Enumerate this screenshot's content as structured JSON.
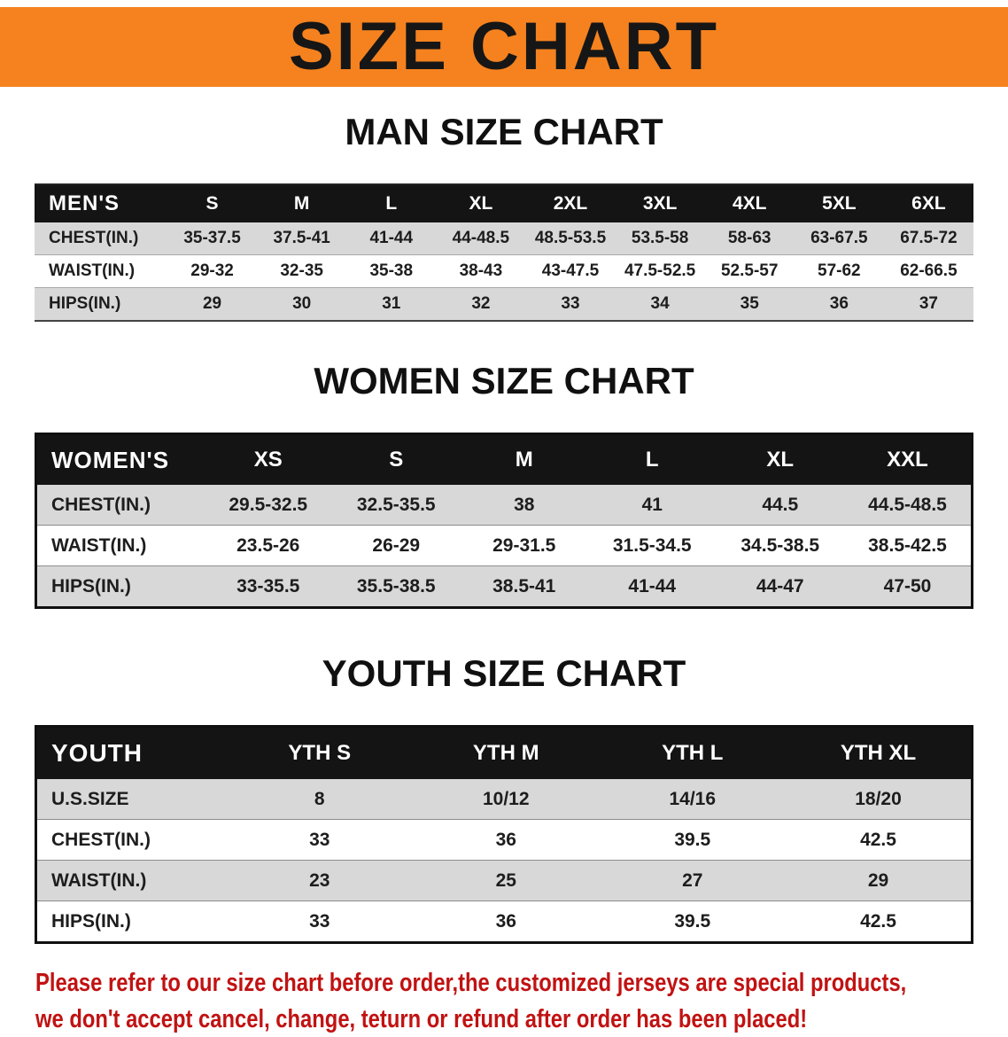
{
  "banner": {
    "title": "SIZE CHART",
    "bg_color": "#f5821f",
    "text_color": "#161616"
  },
  "men": {
    "heading": "MAN SIZE CHART",
    "label": "MEN'S",
    "columns": [
      "S",
      "M",
      "L",
      "XL",
      "2XL",
      "3XL",
      "4XL",
      "5XL",
      "6XL"
    ],
    "rows": [
      {
        "label": "CHEST(IN.)",
        "values": [
          "35-37.5",
          "37.5-41",
          "41-44",
          "44-48.5",
          "48.5-53.5",
          "53.5-58",
          "58-63",
          "63-67.5",
          "67.5-72"
        ]
      },
      {
        "label": "WAIST(IN.)",
        "values": [
          "29-32",
          "32-35",
          "35-38",
          "38-43",
          "43-47.5",
          "47.5-52.5",
          "52.5-57",
          "57-62",
          "62-66.5"
        ]
      },
      {
        "label": "HIPS(IN.)",
        "values": [
          "29",
          "30",
          "31",
          "32",
          "33",
          "34",
          "35",
          "36",
          "37"
        ]
      }
    ]
  },
  "women": {
    "heading": "WOMEN SIZE CHART",
    "label": "WOMEN'S",
    "columns": [
      "XS",
      "S",
      "M",
      "L",
      "XL",
      "XXL"
    ],
    "rows": [
      {
        "label": "CHEST(IN.)",
        "values": [
          "29.5-32.5",
          "32.5-35.5",
          "38",
          "41",
          "44.5",
          "44.5-48.5"
        ]
      },
      {
        "label": "WAIST(IN.)",
        "values": [
          "23.5-26",
          "26-29",
          "29-31.5",
          "31.5-34.5",
          "34.5-38.5",
          "38.5-42.5"
        ]
      },
      {
        "label": "HIPS(IN.)",
        "values": [
          "33-35.5",
          "35.5-38.5",
          "38.5-41",
          "41-44",
          "44-47",
          "47-50"
        ]
      }
    ]
  },
  "youth": {
    "heading": "YOUTH SIZE CHART",
    "label": "YOUTH",
    "columns": [
      "YTH S",
      "YTH M",
      "YTH L",
      "YTH XL"
    ],
    "rows": [
      {
        "label": "U.S.SIZE",
        "values": [
          "8",
          "10/12",
          "14/16",
          "18/20"
        ]
      },
      {
        "label": "CHEST(IN.)",
        "values": [
          "33",
          "36",
          "39.5",
          "42.5"
        ]
      },
      {
        "label": "WAIST(IN.)",
        "values": [
          "23",
          "25",
          "27",
          "29"
        ]
      },
      {
        "label": "HIPS(IN.)",
        "values": [
          "33",
          "36",
          "39.5",
          "42.5"
        ]
      }
    ]
  },
  "footer": {
    "line1": "Please refer to our size chart before order,the customized jerseys are special products,",
    "line2": "we don't accept cancel, change, teturn or refund after order has been placed!",
    "text_color": "#c11212"
  },
  "colors": {
    "header_black": "#141414",
    "row_gray": "#d8d8d8"
  }
}
